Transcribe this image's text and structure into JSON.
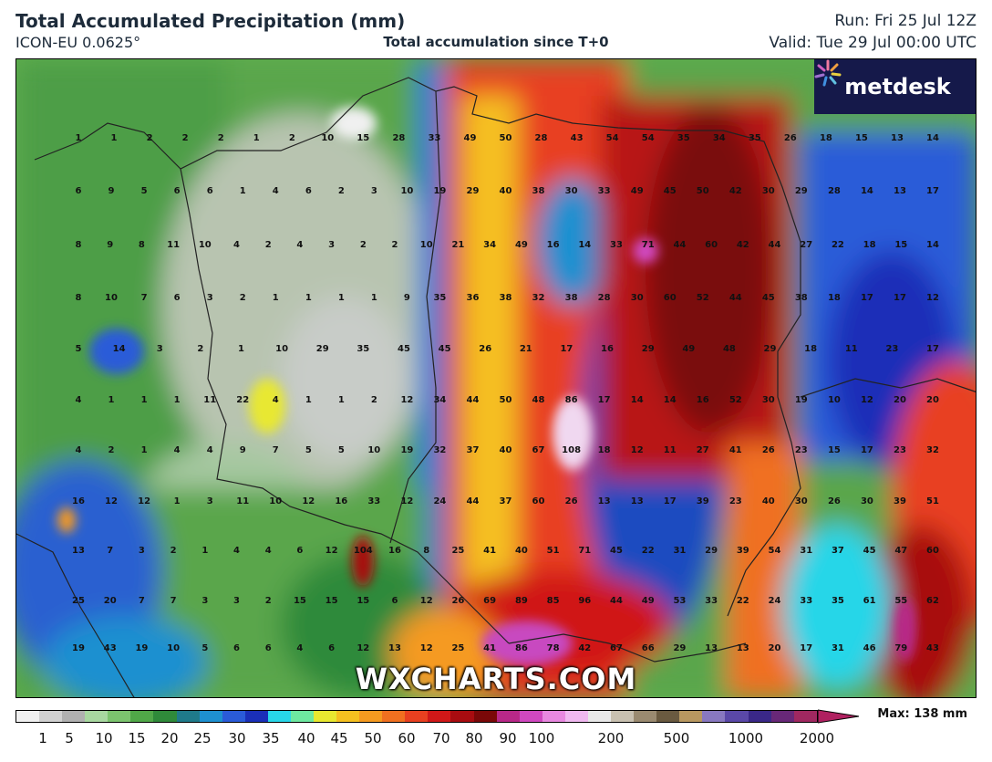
{
  "header": {
    "title": "Total Accumulated Precipitation (mm)",
    "model": "ICON-EU 0.0625°",
    "subtitle": "Total accumulation since T+0",
    "run": "Run: Fri 25 Jul 12Z",
    "valid": "Valid: Tue 29 Jul 00:00 UTC"
  },
  "branding": {
    "logo": "metdesk",
    "logo_icon": "burst-icon",
    "watermark": "WXCHARTS.COM"
  },
  "legend": {
    "max_label": "Max: 138 mm",
    "ticks": [
      "1",
      "5",
      "10",
      "15",
      "20",
      "25",
      "30",
      "35",
      "40",
      "45",
      "50",
      "60",
      "70",
      "80",
      "90",
      "100",
      "200",
      "500",
      "1000",
      "2000"
    ],
    "colors": [
      "#f0f0f0",
      "#d0d0d0",
      "#b0b0b0",
      "#a8d8a0",
      "#7cc46e",
      "#50a848",
      "#2f8a3a",
      "#1f7a8a",
      "#1e90d0",
      "#2a5bd8",
      "#1a2fb8",
      "#28d6e8",
      "#6ee8a0",
      "#e8e830",
      "#f5c020",
      "#f59a20",
      "#f07020",
      "#e84020",
      "#d01818",
      "#a80c10",
      "#7a0808",
      "#b82888",
      "#d048c0",
      "#e888e0",
      "#f0b8f0",
      "#e8e8e8",
      "#c8c0b0",
      "#9a8a70",
      "#6a5a40",
      "#b89860",
      "#8878c0",
      "#5a48a8",
      "#3a2888",
      "#682878",
      "#a02860"
    ]
  },
  "values": [
    [
      "1",
      "1",
      "2",
      "2",
      "2",
      "1",
      "2",
      "10",
      "15",
      "28",
      "33",
      "49",
      "50",
      "28",
      "43",
      "54",
      "54",
      "35",
      "34",
      "35",
      "26",
      "18",
      "15",
      "13",
      "14"
    ],
    [
      "6",
      "9",
      "5",
      "6",
      "6",
      "1",
      "4",
      "6",
      "2",
      "3",
      "10",
      "19",
      "29",
      "40",
      "38",
      "30",
      "33",
      "49",
      "45",
      "50",
      "42",
      "30",
      "29",
      "28",
      "14",
      "13",
      "17"
    ],
    [
      "8",
      "9",
      "8",
      "11",
      "10",
      "4",
      "2",
      "4",
      "3",
      "2",
      "2",
      "10",
      "21",
      "34",
      "49",
      "16",
      "14",
      "33",
      "71",
      "44",
      "60",
      "42",
      "44",
      "27",
      "22",
      "18",
      "15",
      "14"
    ],
    [
      "8",
      "10",
      "7",
      "6",
      "3",
      "2",
      "1",
      "1",
      "1",
      "1",
      "9",
      "35",
      "36",
      "38",
      "32",
      "38",
      "28",
      "30",
      "60",
      "52",
      "44",
      "45",
      "38",
      "18",
      "17",
      "17",
      "12"
    ],
    [
      "5",
      "14",
      "3",
      "2",
      "1",
      "10",
      "29",
      "35",
      "45",
      "45",
      "26",
      "21",
      "17",
      "16",
      "29",
      "49",
      "48",
      "29",
      "18",
      "11",
      "23",
      "17"
    ],
    [
      "4",
      "1",
      "1",
      "1",
      "11",
      "22",
      "4",
      "1",
      "1",
      "2",
      "12",
      "34",
      "44",
      "50",
      "48",
      "86",
      "17",
      "14",
      "14",
      "16",
      "52",
      "30",
      "19",
      "10",
      "12",
      "20",
      "20"
    ],
    [
      "4",
      "2",
      "1",
      "4",
      "4",
      "9",
      "7",
      "5",
      "5",
      "10",
      "19",
      "32",
      "37",
      "40",
      "67",
      "108",
      "18",
      "12",
      "11",
      "27",
      "41",
      "26",
      "23",
      "15",
      "17",
      "23",
      "32"
    ],
    [
      "16",
      "12",
      "12",
      "1",
      "3",
      "11",
      "10",
      "12",
      "16",
      "33",
      "12",
      "24",
      "44",
      "37",
      "60",
      "26",
      "13",
      "13",
      "17",
      "39",
      "23",
      "40",
      "30",
      "26",
      "30",
      "39",
      "51"
    ],
    [
      "13",
      "7",
      "3",
      "2",
      "1",
      "4",
      "4",
      "6",
      "12",
      "104",
      "16",
      "8",
      "25",
      "41",
      "40",
      "51",
      "71",
      "45",
      "22",
      "31",
      "29",
      "39",
      "54",
      "31",
      "37",
      "45",
      "47",
      "60"
    ],
    [
      "25",
      "20",
      "7",
      "7",
      "3",
      "3",
      "2",
      "15",
      "15",
      "15",
      "6",
      "12",
      "26",
      "69",
      "89",
      "85",
      "96",
      "44",
      "49",
      "53",
      "33",
      "22",
      "24",
      "33",
      "35",
      "61",
      "55",
      "62"
    ],
    [
      "19",
      "43",
      "19",
      "10",
      "5",
      "6",
      "6",
      "4",
      "6",
      "12",
      "13",
      "12",
      "25",
      "41",
      "86",
      "78",
      "42",
      "67",
      "66",
      "29",
      "13",
      "13",
      "20",
      "17",
      "31",
      "46",
      "79",
      "43"
    ]
  ]
}
